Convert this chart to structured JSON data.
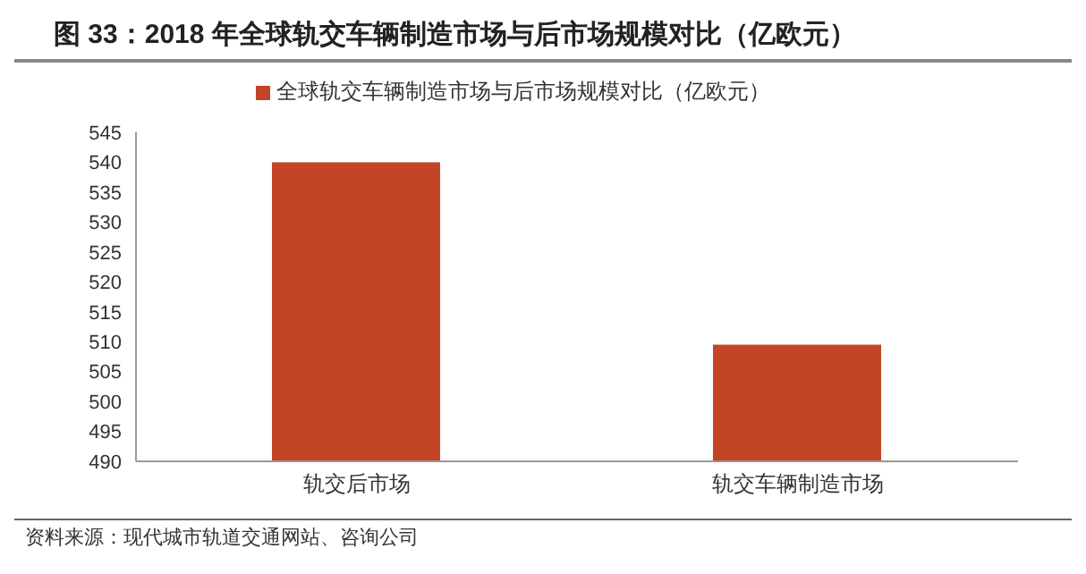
{
  "chart_data": {
    "type": "bar",
    "title": "图 33：2018 年全球轨交车辆制造市场与后市场规模对比（亿欧元）",
    "categories": [
      "轨交后市场",
      "轨交车辆制造市场"
    ],
    "series": [
      {
        "name": "全球轨交车辆制造市场与后市场规模对比（亿欧元）",
        "color": "#c44526",
        "values": [
          540,
          509.5
        ]
      }
    ],
    "ylim": [
      490,
      545
    ],
    "yticks": [
      490,
      495,
      500,
      505,
      510,
      515,
      520,
      525,
      530,
      535,
      540,
      545
    ],
    "grid": false,
    "legend": "top",
    "annotations": [
      "资料来源：现代城市轨道交通网站、咨询公司"
    ]
  }
}
